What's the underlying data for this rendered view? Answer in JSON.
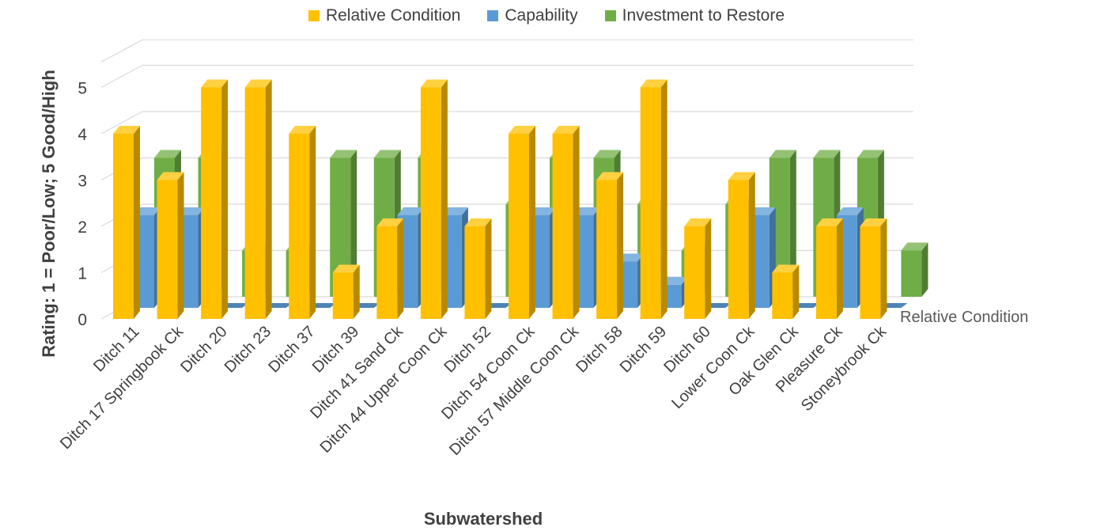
{
  "chart_data": {
    "type": "bar",
    "subtype": "3d-column",
    "categories": [
      "Ditch 11",
      "Ditch 17 Springbook Ck",
      "Ditch 20",
      "Ditch 23",
      "Ditch 37",
      "Ditch 39",
      "Ditch 41 Sand Ck",
      "Ditch 44 Upper Coon Ck",
      "Ditch 52",
      "Ditch 54 Coon Ck",
      "Ditch 57 Middle Coon Ck",
      "Ditch 58",
      "Ditch 59",
      "Ditch 60",
      "Lower Coon Ck",
      "Oak Glen Ck",
      "Pleasure Ck",
      "Stoneybrook Ck"
    ],
    "series": [
      {
        "name": "Relative Condition",
        "color": "#FFC000",
        "values": [
          4,
          3,
          5,
          5,
          4,
          1,
          2,
          5,
          2,
          4,
          4,
          3,
          5,
          2,
          3,
          1,
          2,
          2
        ]
      },
      {
        "name": "Capability",
        "color": "#5B9BD5",
        "values": [
          2,
          2,
          0,
          0,
          0,
          0,
          2,
          2,
          0,
          2,
          2,
          1,
          0.5,
          0,
          2,
          0,
          2,
          0
        ]
      },
      {
        "name": "Investment to Restore",
        "color": "#70AD47",
        "values": [
          3,
          3,
          1,
          1,
          3,
          3,
          3,
          1,
          2,
          3,
          3,
          2,
          1,
          2,
          3,
          3,
          3,
          1
        ]
      }
    ],
    "xlabel": "Subwatershed",
    "ylabel": "Rating: 1 = Poor/Low;  5 Good/High",
    "depth_axis_label": "Relative Condition",
    "yticks": [
      "0",
      "1",
      "2",
      "3",
      "4",
      "5"
    ],
    "ylim": [
      0,
      5
    ],
    "legend_position": "top",
    "grid": true
  }
}
